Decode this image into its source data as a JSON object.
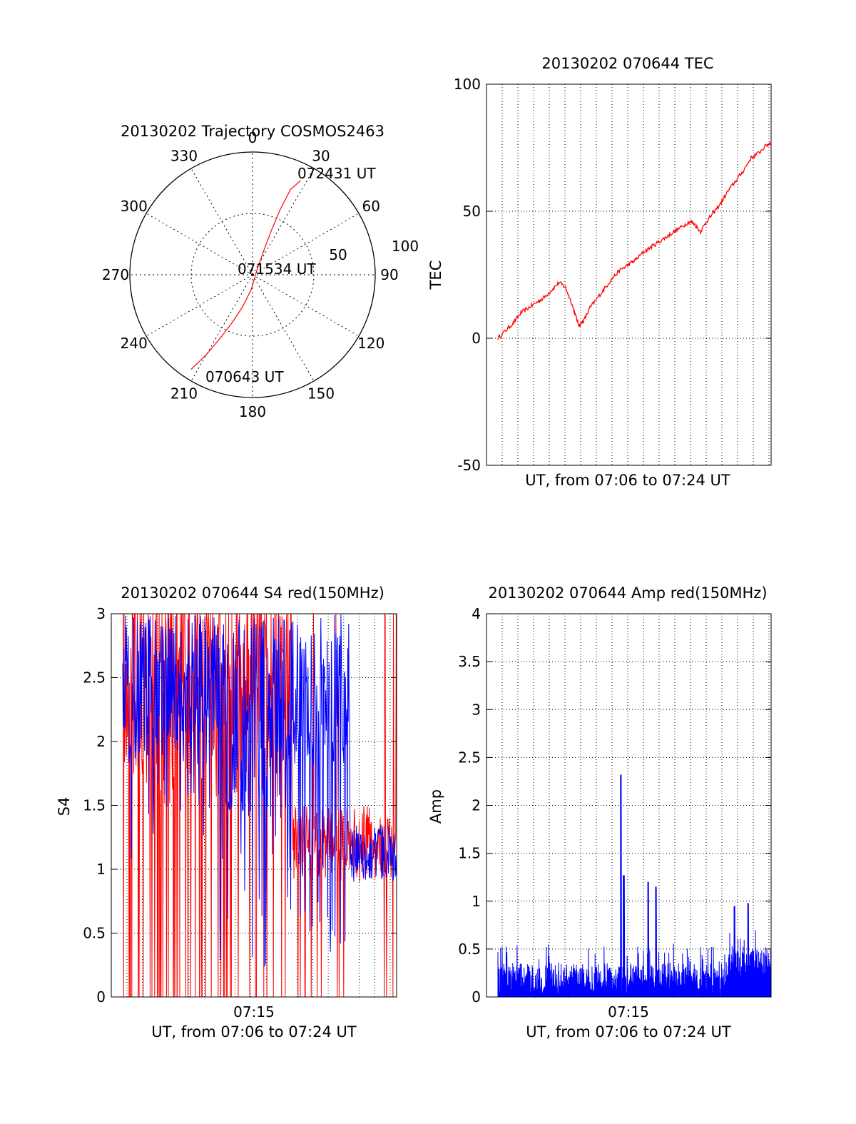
{
  "colors": {
    "red_channel": "#ff0000",
    "blue_channel": "#0000ff",
    "axis": "#000000",
    "grid": "#000000"
  },
  "chart_data": [
    {
      "id": "trajectory",
      "type": "polar",
      "title": "20130202 Trajectory COSMOS2463",
      "angle_labels": [
        "0",
        "30",
        "60",
        "90",
        "120",
        "150",
        "180",
        "210",
        "240",
        "270",
        "300",
        "330"
      ],
      "radius_labels": [
        "50",
        "100"
      ],
      "radius_range": [
        0,
        100
      ],
      "grid": true,
      "trajectory": {
        "color": "red",
        "points": [
          {
            "az": 213,
            "r": 92
          },
          {
            "az": 210,
            "r": 75
          },
          {
            "az": 207,
            "r": 58
          },
          {
            "az": 203,
            "r": 42
          },
          {
            "az": 197,
            "r": 27
          },
          {
            "az": 185,
            "r": 12
          },
          {
            "az": 160,
            "r": 4
          },
          {
            "az": 40,
            "r": 6
          },
          {
            "az": 25,
            "r": 22
          },
          {
            "az": 23,
            "r": 40
          },
          {
            "az": 23,
            "r": 58
          },
          {
            "az": 24,
            "r": 76
          },
          {
            "az": 27,
            "r": 86
          }
        ]
      },
      "annotations": [
        {
          "text": "072431 UT",
          "az": 27,
          "r": 86
        },
        {
          "text": "071534 UT",
          "az": 90,
          "r": 0
        },
        {
          "text": "070643 UT",
          "az": 213,
          "r": 92
        }
      ]
    },
    {
      "id": "tec",
      "type": "line",
      "title": "20130202 070644 TEC",
      "xlabel": "UT, from 07:06 to 07:24 UT",
      "ylabel": "TEC",
      "ylim": [
        -50,
        100
      ],
      "yticks": [
        "-50",
        "0",
        "50",
        "100"
      ],
      "xlim_minutes": [
        7.0,
        24.8
      ],
      "grid": true,
      "series": [
        {
          "color": "red",
          "points": [
            [
              7.0,
              0
            ],
            [
              7.5,
              3
            ],
            [
              8.0,
              6
            ],
            [
              8.5,
              10
            ],
            [
              9.0,
              12
            ],
            [
              9.5,
              14
            ],
            [
              10.0,
              16
            ],
            [
              10.5,
              19
            ],
            [
              11.0,
              22
            ],
            [
              11.4,
              20
            ],
            [
              11.8,
              14
            ],
            [
              12.1,
              8
            ],
            [
              12.3,
              5
            ],
            [
              12.6,
              7
            ],
            [
              13.0,
              12
            ],
            [
              13.5,
              16
            ],
            [
              14.0,
              20
            ],
            [
              14.5,
              24
            ],
            [
              15.0,
              27
            ],
            [
              15.5,
              29
            ],
            [
              16.0,
              31
            ],
            [
              16.5,
              34
            ],
            [
              17.0,
              36
            ],
            [
              17.5,
              38
            ],
            [
              18.0,
              40
            ],
            [
              18.5,
              42
            ],
            [
              19.0,
              44
            ],
            [
              19.5,
              46
            ],
            [
              19.8,
              45
            ],
            [
              20.2,
              42
            ],
            [
              20.6,
              46
            ],
            [
              21.0,
              49
            ],
            [
              21.5,
              53
            ],
            [
              22.0,
              58
            ],
            [
              22.5,
              62
            ],
            [
              23.0,
              66
            ],
            [
              23.5,
              71
            ],
            [
              24.0,
              73
            ],
            [
              24.5,
              76
            ],
            [
              24.8,
              77
            ]
          ]
        }
      ]
    },
    {
      "id": "s4",
      "type": "line",
      "title": "20130202 070644 S4 red(150MHz)",
      "xlabel": "UT, from 07:06 to 07:24 UT",
      "ylabel": "S4",
      "ylim": [
        0,
        3
      ],
      "yticks": [
        "0",
        "0.5",
        "1",
        "1.5",
        "2",
        "2.5",
        "3"
      ],
      "xticks": [
        "07:15"
      ],
      "grid": true,
      "series": [
        {
          "name": "",
          "color": "red",
          "style": "noisy spikes between 0 and 3, dense 07:06-07:18"
        },
        {
          "name": "",
          "color": "blue",
          "style": "noisy around 2.0 early, drops to ~1.1 after 07:21"
        }
      ]
    },
    {
      "id": "amp",
      "type": "line",
      "title": "20130202 070644 Amp red(150MHz)",
      "xlabel": "UT, from 07:06 to 07:24 UT",
      "ylabel": "Amp",
      "ylim": [
        0,
        4
      ],
      "yticks": [
        "0",
        "0.5",
        "1",
        "1.5",
        "2",
        "2.5",
        "3",
        "3.5",
        "4"
      ],
      "xticks": [
        "07:15"
      ],
      "grid": true,
      "series": [
        {
          "name": "",
          "color": "blue",
          "baseline": 0.2,
          "peaks": [
            {
              "t": 15.0,
              "v": 2.32
            },
            {
              "t": 15.2,
              "v": 1.27
            },
            {
              "t": 16.8,
              "v": 1.2
            },
            {
              "t": 17.3,
              "v": 1.15
            },
            {
              "t": 22.4,
              "v": 0.95
            },
            {
              "t": 23.3,
              "v": 0.98
            }
          ]
        }
      ]
    }
  ]
}
